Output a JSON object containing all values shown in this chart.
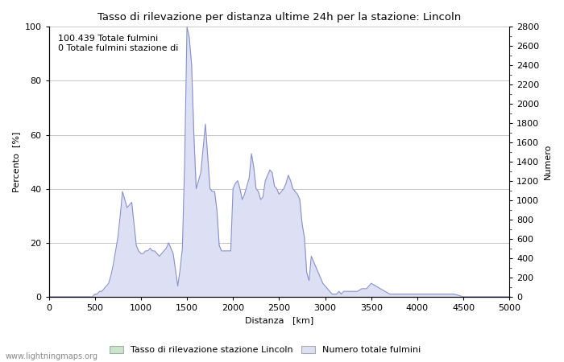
{
  "title": "Tasso di rilevazione per distanza ultime 24h per la stazione: Lincoln",
  "xlabel": "Distanza   [km]",
  "ylabel_left": "Percento  [%]",
  "ylabel_right": "Numero",
  "annotation_line1": "100.439 Totale fulmini",
  "annotation_line2": "0 Totale fulmini stazione di",
  "xlim": [
    0,
    5000
  ],
  "ylim_left": [
    0,
    100
  ],
  "ylim_right": [
    0,
    2800
  ],
  "xticks": [
    0,
    500,
    1000,
    1500,
    2000,
    2500,
    3000,
    3500,
    4000,
    4500,
    5000
  ],
  "yticks_left": [
    0,
    20,
    40,
    60,
    80,
    100
  ],
  "yticks_right": [
    0,
    200,
    400,
    600,
    800,
    1000,
    1200,
    1400,
    1600,
    1800,
    2000,
    2200,
    2400,
    2600,
    2800
  ],
  "legend_label1": "Tasso di rilevazione stazione Lincoln",
  "legend_label2": "Numero totale fulmini",
  "fill_color_green": "#c8e6c9",
  "fill_color_blue": "#dde0f5",
  "line_color": "#8890cc",
  "watermark": "www.lightningmaps.org",
  "background_color": "#ffffff",
  "grid_color": "#bbbbbb",
  "dist": [
    0,
    25,
    50,
    75,
    100,
    125,
    150,
    175,
    200,
    225,
    250,
    275,
    300,
    325,
    350,
    375,
    400,
    425,
    450,
    475,
    500,
    525,
    550,
    575,
    600,
    625,
    650,
    675,
    700,
    725,
    750,
    775,
    800,
    825,
    850,
    875,
    900,
    925,
    950,
    975,
    1000,
    1025,
    1050,
    1075,
    1100,
    1125,
    1150,
    1175,
    1200,
    1225,
    1250,
    1275,
    1300,
    1325,
    1350,
    1375,
    1400,
    1425,
    1450,
    1475,
    1500,
    1525,
    1550,
    1575,
    1600,
    1625,
    1650,
    1675,
    1700,
    1725,
    1750,
    1775,
    1800,
    1825,
    1850,
    1875,
    1900,
    1925,
    1950,
    1975,
    2000,
    2025,
    2050,
    2075,
    2100,
    2125,
    2150,
    2175,
    2200,
    2225,
    2250,
    2275,
    2300,
    2325,
    2350,
    2375,
    2400,
    2425,
    2450,
    2475,
    2500,
    2525,
    2550,
    2575,
    2600,
    2625,
    2650,
    2675,
    2700,
    2725,
    2750,
    2775,
    2800,
    2825,
    2850,
    2875,
    2900,
    2925,
    2950,
    2975,
    3000,
    3025,
    3050,
    3075,
    3100,
    3125,
    3150,
    3175,
    3200,
    3250,
    3300,
    3350,
    3400,
    3450,
    3500,
    3550,
    3600,
    3650,
    3700,
    3750,
    3800,
    3850,
    3900,
    3950,
    4000,
    4100,
    4200,
    4300,
    4400,
    4500,
    4600,
    4700,
    4800,
    4900,
    5000
  ],
  "pct": [
    0,
    0,
    0,
    0,
    0,
    0,
    0,
    0,
    0,
    0,
    0,
    0,
    0,
    0,
    0,
    0,
    0,
    0,
    0,
    0,
    1,
    1,
    2,
    2,
    3,
    4,
    5,
    8,
    12,
    17,
    22,
    30,
    39,
    36,
    33,
    34,
    35,
    27,
    19,
    17,
    16,
    16,
    17,
    17,
    18,
    17,
    17,
    16,
    15,
    16,
    17,
    18,
    20,
    18,
    16,
    10,
    4,
    10,
    18,
    50,
    100,
    96,
    86,
    60,
    40,
    43,
    46,
    55,
    64,
    52,
    40,
    39,
    39,
    32,
    19,
    17,
    17,
    17,
    17,
    17,
    40,
    42,
    43,
    40,
    36,
    38,
    41,
    44,
    53,
    48,
    40,
    39,
    36,
    37,
    43,
    45,
    47,
    46,
    41,
    40,
    38,
    39,
    40,
    42,
    45,
    43,
    40,
    39,
    38,
    36,
    27,
    22,
    9,
    6,
    15,
    13,
    11,
    9,
    7,
    5,
    4,
    3,
    2,
    1,
    1,
    1,
    2,
    1,
    2,
    2,
    2,
    2,
    3,
    3,
    5,
    4,
    3,
    2,
    1,
    1,
    1,
    1,
    1,
    1,
    1,
    1,
    1,
    1,
    1,
    0,
    0,
    0,
    0,
    0,
    0,
    0,
    0
  ],
  "green_fill_start": 1400,
  "green_fill_end": 2850
}
